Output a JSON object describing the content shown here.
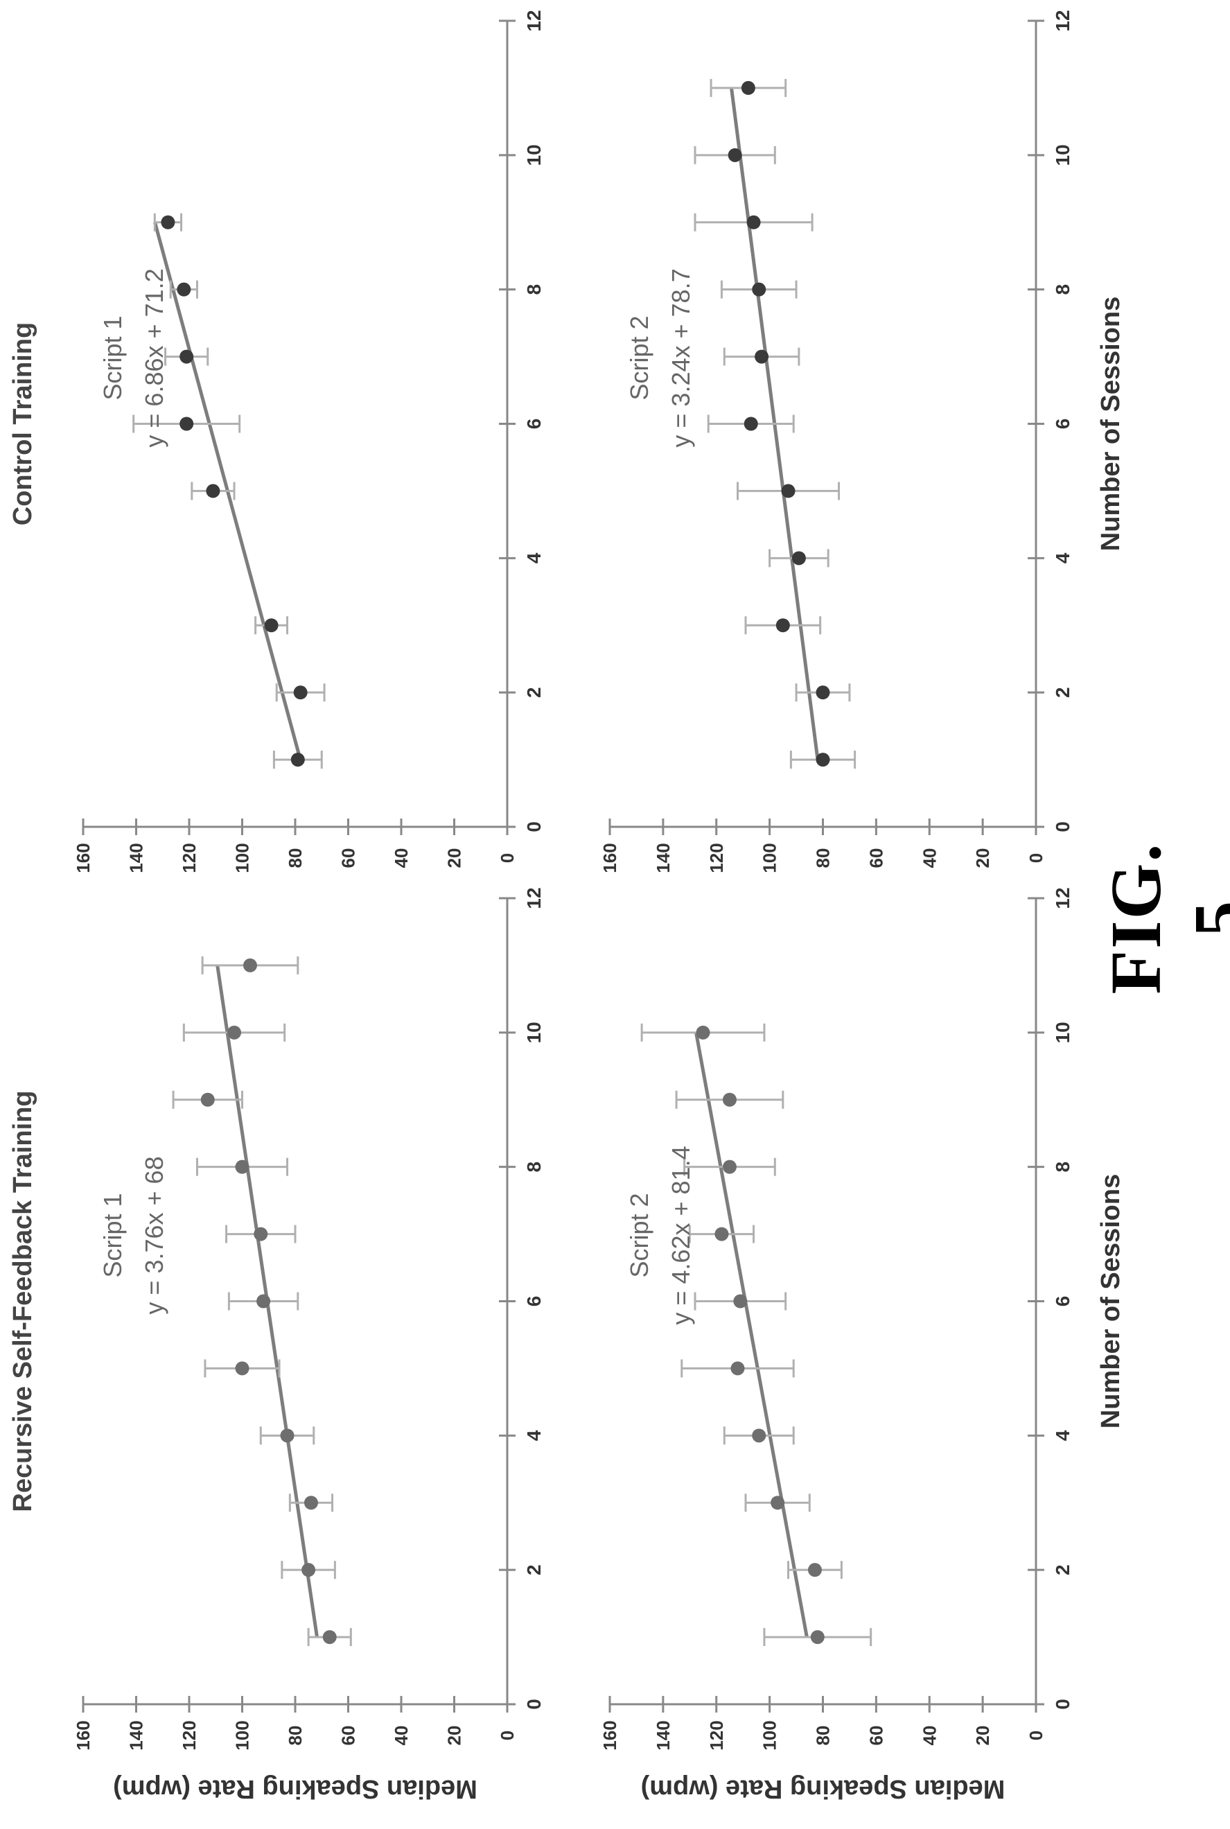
{
  "figure_label": "FIG. 5",
  "chart_data": [
    {
      "type": "scatter",
      "title": "Recursive Self-Feedback Training",
      "subtitle": "Script 1",
      "equation": "y = 3.76x + 68",
      "xlabel": "",
      "ylabel": "Median Speaking Rate (wpm)",
      "xlim": [
        0,
        12
      ],
      "ylim": [
        0,
        160
      ],
      "xticks": [
        0,
        2,
        4,
        6,
        8,
        10,
        12
      ],
      "yticks": [
        0,
        20,
        40,
        60,
        80,
        100,
        120,
        140,
        160
      ],
      "trendline": {
        "slope": 3.76,
        "intercept": 68,
        "x_range": [
          1,
          11
        ]
      },
      "series": [
        {
          "x": [
            1,
            2,
            3,
            4,
            5,
            6,
            7,
            8,
            9,
            10,
            11
          ],
          "y": [
            67,
            75,
            74,
            83,
            100,
            92,
            93,
            100,
            113,
            103,
            97
          ],
          "err": [
            8,
            10,
            8,
            10,
            14,
            13,
            13,
            17,
            13,
            19,
            18
          ]
        }
      ],
      "marker_color": "#6e6e6e"
    },
    {
      "type": "scatter",
      "title": "Control Training",
      "subtitle": "Script 1",
      "equation": "y = 6.86x + 71.2",
      "xlabel": "",
      "ylabel": "",
      "xlim": [
        0,
        12
      ],
      "ylim": [
        0,
        160
      ],
      "xticks": [
        0,
        2,
        4,
        6,
        8,
        10,
        12
      ],
      "yticks": [
        0,
        20,
        40,
        60,
        80,
        100,
        120,
        140,
        160
      ],
      "trendline": {
        "slope": 6.86,
        "intercept": 71.2,
        "x_range": [
          1,
          9
        ]
      },
      "series": [
        {
          "x": [
            1,
            2,
            3,
            5,
            6,
            7,
            8,
            9
          ],
          "y": [
            79,
            78,
            89,
            111,
            121,
            121,
            122,
            128
          ],
          "err": [
            9,
            9,
            6,
            8,
            20,
            8,
            5,
            5
          ]
        }
      ],
      "marker_color": "#3a3a3a"
    },
    {
      "type": "scatter",
      "title": "",
      "subtitle": "Script 2",
      "equation": "y = 4.62x + 81.4",
      "xlabel": "Number of Sessions",
      "ylabel": "Median Speaking Rate (wpm)",
      "xlim": [
        0,
        12
      ],
      "ylim": [
        0,
        160
      ],
      "xticks": [
        0,
        2,
        4,
        6,
        8,
        10,
        12
      ],
      "yticks": [
        0,
        20,
        40,
        60,
        80,
        100,
        120,
        140,
        160
      ],
      "trendline": {
        "slope": 4.62,
        "intercept": 81.4,
        "x_range": [
          1,
          10
        ]
      },
      "series": [
        {
          "x": [
            1,
            2,
            3,
            4,
            5,
            6,
            7,
            8,
            9,
            10
          ],
          "y": [
            82,
            83,
            97,
            104,
            112,
            111,
            118,
            115,
            115,
            125
          ],
          "err": [
            20,
            10,
            12,
            13,
            21,
            17,
            12,
            17,
            20,
            23
          ]
        }
      ],
      "marker_color": "#6e6e6e"
    },
    {
      "type": "scatter",
      "title": "",
      "subtitle": "Script 2",
      "equation": "y = 3.24x + 78.7",
      "xlabel": "Number of Sessions",
      "ylabel": "",
      "xlim": [
        0,
        12
      ],
      "ylim": [
        0,
        160
      ],
      "xticks": [
        0,
        2,
        4,
        6,
        8,
        10,
        12
      ],
      "yticks": [
        0,
        20,
        40,
        60,
        80,
        100,
        120,
        140,
        160
      ],
      "trendline": {
        "slope": 3.24,
        "intercept": 78.7,
        "x_range": [
          1,
          11
        ]
      },
      "series": [
        {
          "x": [
            1,
            2,
            3,
            4,
            5,
            6,
            7,
            8,
            9,
            10,
            11
          ],
          "y": [
            80,
            80,
            95,
            89,
            93,
            107,
            103,
            104,
            106,
            113,
            108
          ],
          "err": [
            12,
            10,
            14,
            11,
            19,
            16,
            14,
            14,
            22,
            15,
            14
          ]
        }
      ],
      "marker_color": "#3a3a3a"
    }
  ]
}
